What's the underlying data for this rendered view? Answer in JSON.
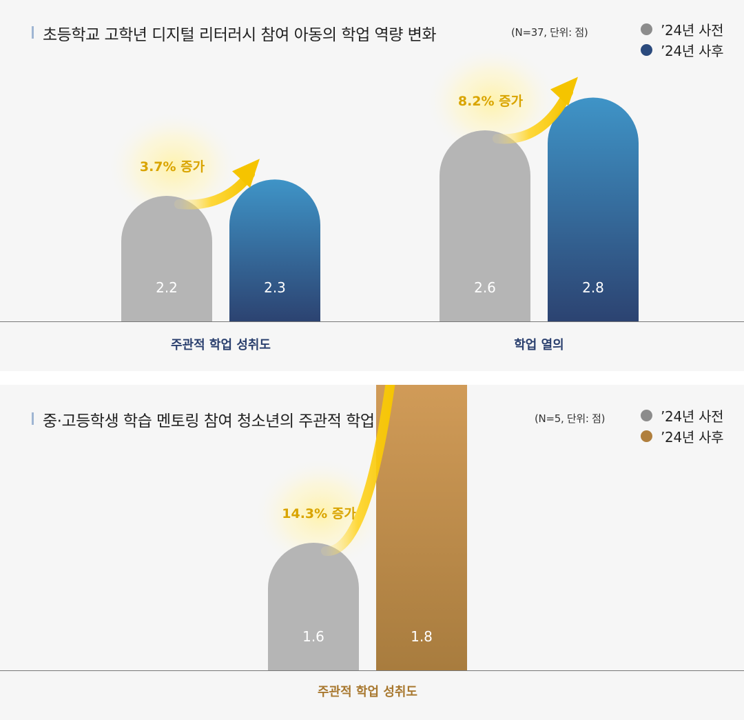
{
  "chart_data": [
    {
      "type": "bar",
      "title": "초등학교 고학년 디지털 리터러시 참여 아동의 학업 역량 변화",
      "subtitle": "(N=37, 단위: 점)",
      "categories": [
        "주관적 학업 성취도",
        "학업 열의"
      ],
      "series": [
        {
          "name": "’24년 사전",
          "values": [
            2.2,
            2.6
          ],
          "value_labels": [
            "2.2",
            "2.6"
          ],
          "color": "#b5b5b5"
        },
        {
          "name": "’24년 사후",
          "values": [
            2.3,
            2.8
          ],
          "value_labels": [
            "2.3",
            "2.8"
          ],
          "color": "#2c4a7c",
          "gradient": [
            "#3f94c7",
            "#2c4371"
          ]
        }
      ],
      "annotations": [
        "3.7% 증가",
        "8.2% 증가"
      ],
      "legend": "top-right",
      "grid": false,
      "category_label_color": "#2a3f6e"
    },
    {
      "type": "bar",
      "title": "중·고등학생 학습 멘토링 참여 청소년의 주관적 학업 성취도 변화",
      "subtitle": "(N=5, 단위: 점)",
      "categories": [
        "주관적 학업 성취도"
      ],
      "series": [
        {
          "name": "’24년 사전",
          "values": [
            1.6
          ],
          "value_labels": [
            "1.6"
          ],
          "color": "#b5b5b5"
        },
        {
          "name": "’24년 사후",
          "values": [
            1.8
          ],
          "value_labels": [
            "1.8"
          ],
          "color": "#b5853f",
          "gradient": [
            "#d7a05c",
            "#a87c3e"
          ]
        }
      ],
      "annotations": [
        "14.3% 증가"
      ],
      "legend": "top-right",
      "grid": false,
      "category_label_color": "#a8782f"
    }
  ],
  "colors": {
    "panel_background": "#f6f6f6",
    "before_bar": "#b5b5b5",
    "arrow": "#f5c400",
    "annotation_text": "#d9a400",
    "value_label": "#ffffff",
    "axis_line": "#777777"
  }
}
